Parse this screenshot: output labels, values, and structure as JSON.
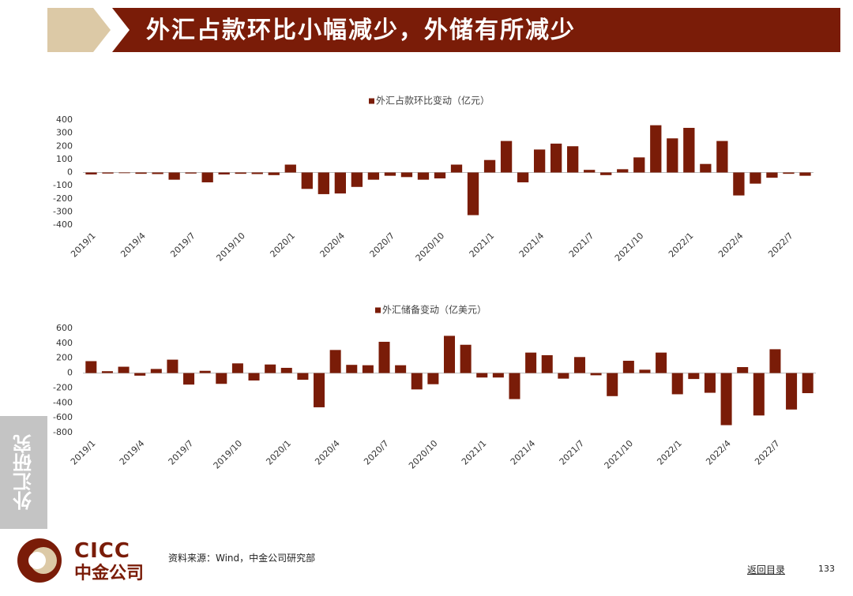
{
  "header": {
    "title": "外汇占款环比小幅减少，外储有所减少"
  },
  "sidebar": "外汇研究",
  "logo": {
    "en": "CICC",
    "cn": "中金公司"
  },
  "source": "资料来源：Wind，中金公司研究部",
  "nav": "返回目录",
  "page_number": "133",
  "chart_data": [
    {
      "type": "bar",
      "categories": [
        "2019/1",
        null,
        null,
        "2019/4",
        null,
        null,
        "2019/7",
        null,
        null,
        "2019/10",
        null,
        null,
        "2020/1",
        null,
        null,
        "2020/4",
        null,
        null,
        "2020/7",
        null,
        null,
        "2020/10",
        null,
        null,
        "2021/1",
        null,
        null,
        "2021/4",
        null,
        null,
        "2021/7",
        null,
        null,
        "2021/10",
        null,
        null,
        "2022/1",
        null,
        null,
        "2022/4",
        null,
        null,
        "2022/7",
        null
      ],
      "series": [
        {
          "name": "外汇占款环比变动（亿元）",
          "color": "#7a1c08",
          "values": [
            -15,
            -8,
            -5,
            -10,
            -12,
            -55,
            -8,
            -75,
            -15,
            -10,
            -12,
            -20,
            60,
            -125,
            -165,
            -160,
            -110,
            -55,
            -25,
            -35,
            -55,
            -45,
            60,
            -325,
            95,
            240,
            -75,
            175,
            220,
            200,
            20,
            -20,
            25,
            115,
            360,
            260,
            340,
            65,
            240,
            -175,
            -85,
            -40,
            -10,
            -25
          ]
        }
      ],
      "ylim": [
        -400,
        400
      ],
      "yticks": [
        -400,
        -300,
        -200,
        -100,
        0,
        100,
        200,
        300,
        400
      ]
    },
    {
      "type": "bar",
      "categories": [
        "2019/1",
        null,
        null,
        "2019/4",
        null,
        null,
        "2019/7",
        null,
        null,
        "2019/10",
        null,
        null,
        "2020/1",
        null,
        null,
        "2020/4",
        null,
        null,
        "2020/7",
        null,
        null,
        "2020/10",
        null,
        null,
        "2021/1",
        null,
        null,
        "2021/4",
        null,
        null,
        "2021/7",
        null,
        null,
        "2021/10",
        null,
        null,
        "2022/1",
        null,
        null,
        "2022/4",
        null,
        null,
        "2022/7",
        null,
        null
      ],
      "series": [
        {
          "name": "外汇储备变动（亿美元）",
          "color": "#7a1c08",
          "values": [
            160,
            25,
            85,
            -35,
            55,
            180,
            -155,
            30,
            -145,
            130,
            -100,
            115,
            70,
            -90,
            -460,
            310,
            110,
            105,
            420,
            105,
            -220,
            -150,
            500,
            380,
            -60,
            -60,
            -350,
            275,
            240,
            -75,
            215,
            -30,
            -310,
            165,
            45,
            275,
            -285,
            -80,
            -265,
            -700,
            80,
            -570,
            320,
            -490,
            -270
          ]
        }
      ],
      "ylim": [
        -800,
        600
      ],
      "yticks": [
        -800,
        -600,
        -400,
        -200,
        0,
        200,
        400,
        600
      ]
    }
  ]
}
